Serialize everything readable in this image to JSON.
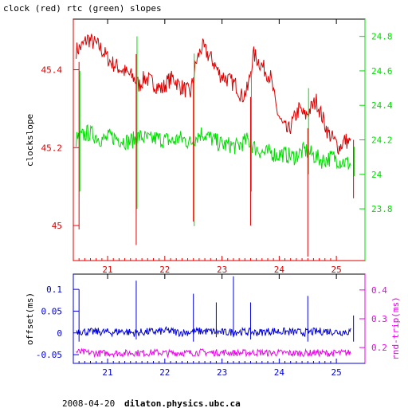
{
  "title": "clock (red) rtc (green) slopes",
  "footer": {
    "date": "2008-04-20",
    "host": "dilaton.physics.ubc.ca"
  },
  "colors": {
    "red": "#dd0000",
    "green": "#00dd00",
    "blue": "#0000dd",
    "magenta": "#ee00ee",
    "axis": "#000000"
  },
  "chart_data": [
    {
      "type": "line",
      "name": "top-panel",
      "ylabel": "clockslope",
      "xlim": [
        20.4,
        25.5
      ],
      "x_ticks": [
        "21",
        "22",
        "23",
        "24",
        "25"
      ],
      "ylim_left": [
        44.91,
        45.53
      ],
      "ylim_right": [
        23.5,
        24.9
      ],
      "left_ticks": [
        "45",
        "45.2",
        "45.4"
      ],
      "right_ticks": [
        "23.8",
        "24",
        "24.2",
        "24.4",
        "24.6",
        "24.8"
      ],
      "series": [
        {
          "axis": "left",
          "color": "red",
          "x": [
            20.45,
            20.55,
            20.65,
            20.75,
            20.85,
            20.95,
            21.05,
            21.15,
            21.25,
            21.35,
            21.45,
            21.55,
            21.65,
            21.75,
            21.85,
            21.95,
            22.05,
            22.15,
            22.25,
            22.35,
            22.45,
            22.55,
            22.65,
            22.75,
            22.85,
            22.95,
            23.05,
            23.15,
            23.25,
            23.35,
            23.45,
            23.55,
            23.65,
            23.75,
            23.85,
            23.95,
            24.05,
            24.15,
            24.25,
            24.35,
            24.45,
            24.55,
            24.65,
            24.75,
            24.85,
            24.95,
            25.05,
            25.15,
            25.25
          ],
          "y": [
            45.45,
            45.46,
            45.48,
            45.47,
            45.46,
            45.44,
            45.42,
            45.41,
            45.4,
            45.39,
            45.38,
            45.36,
            45.38,
            45.37,
            45.36,
            45.35,
            45.37,
            45.38,
            45.36,
            45.35,
            45.34,
            45.42,
            45.46,
            45.44,
            45.42,
            45.39,
            45.38,
            45.37,
            45.36,
            45.33,
            45.35,
            45.44,
            45.42,
            45.4,
            45.38,
            45.3,
            45.26,
            45.24,
            45.27,
            45.3,
            45.28,
            45.3,
            45.32,
            45.28,
            45.24,
            45.22,
            45.2,
            45.22,
            45.21
          ]
        },
        {
          "axis": "right",
          "color": "green",
          "x": [
            20.45,
            20.55,
            20.65,
            20.75,
            20.85,
            20.95,
            21.05,
            21.15,
            21.25,
            21.35,
            21.45,
            21.55,
            21.65,
            21.75,
            21.85,
            21.95,
            22.05,
            22.15,
            22.25,
            22.35,
            22.45,
            22.55,
            22.65,
            22.75,
            22.85,
            22.95,
            23.05,
            23.15,
            23.25,
            23.35,
            23.45,
            23.55,
            23.65,
            23.75,
            23.85,
            23.95,
            24.05,
            24.15,
            24.25,
            24.35,
            24.45,
            24.55,
            24.65,
            24.75,
            24.85,
            24.95,
            25.05,
            25.15,
            25.25
          ],
          "y": [
            24.2,
            24.22,
            24.24,
            24.23,
            24.21,
            24.2,
            24.22,
            24.21,
            24.2,
            24.19,
            24.2,
            24.22,
            24.21,
            24.2,
            24.21,
            24.2,
            24.2,
            24.19,
            24.21,
            24.2,
            24.18,
            24.22,
            24.24,
            24.22,
            24.2,
            24.18,
            24.17,
            24.17,
            24.16,
            24.18,
            24.2,
            24.16,
            24.14,
            24.12,
            24.13,
            24.11,
            24.12,
            24.11,
            24.1,
            24.12,
            24.14,
            24.12,
            24.1,
            24.08,
            24.09,
            24.1,
            24.08,
            24.07,
            24.06
          ]
        }
      ],
      "spikes": [
        {
          "x": 20.5,
          "left_min": 44.99,
          "left_max": 45.42,
          "right_min": 23.9,
          "right_max": 24.6
        },
        {
          "x": 21.5,
          "left_min": 44.95,
          "left_max": 45.44,
          "right_min": 23.8,
          "right_max": 24.8
        },
        {
          "x": 22.5,
          "left_min": 45.01,
          "left_max": 45.38,
          "right_min": 23.7,
          "right_max": 24.7
        },
        {
          "x": 23.5,
          "left_min": 45.0,
          "left_max": 45.33,
          "right_min": 23.9,
          "right_max": 24.6
        },
        {
          "x": 24.5,
          "left_min": 44.92,
          "left_max": 45.25,
          "right_min": 24.0,
          "right_max": 24.5
        },
        {
          "x": 25.3,
          "left_min": 45.07,
          "left_max": 45.22,
          "right_min": 23.99,
          "right_max": 24.16
        }
      ]
    },
    {
      "type": "line",
      "name": "bottom-panel",
      "ylabel_left": "offset(ms)",
      "ylabel_right": "rnd-trip(ms)",
      "xlim": [
        20.4,
        25.5
      ],
      "x_ticks": [
        "21",
        "22",
        "23",
        "24",
        "25"
      ],
      "ylim_left": [
        -0.07,
        0.135
      ],
      "ylim_right": [
        0.145,
        0.455
      ],
      "left_ticks": [
        "-0.05",
        "0",
        "0.05",
        "0.1"
      ],
      "right_ticks": [
        "0.2",
        "0.3",
        "0.4"
      ],
      "series": [
        {
          "axis": "left",
          "color": "blue",
          "x": [
            20.45,
            20.65,
            20.85,
            21.05,
            21.25,
            21.45,
            21.65,
            21.85,
            22.05,
            22.25,
            22.45,
            22.65,
            22.85,
            23.05,
            23.25,
            23.45,
            23.65,
            23.85,
            24.05,
            24.25,
            24.45,
            24.65,
            24.85,
            25.05,
            25.25
          ],
          "y": [
            0.005,
            0.002,
            0.003,
            0.001,
            0.004,
            0.0,
            0.002,
            0.003,
            0.005,
            0.001,
            0.002,
            0.004,
            0.003,
            0.001,
            0.003,
            0.002,
            0.001,
            0.004,
            0.003,
            0.002,
            0.001,
            0.003,
            0.004,
            0.002,
            0.003
          ]
        },
        {
          "axis": "right",
          "color": "magenta",
          "x": [
            20.45,
            20.65,
            20.85,
            21.05,
            21.25,
            21.45,
            21.65,
            21.85,
            22.05,
            22.25,
            22.45,
            22.65,
            22.85,
            23.05,
            23.25,
            23.45,
            23.65,
            23.85,
            24.05,
            24.25,
            24.45,
            24.65,
            24.85,
            25.05,
            25.25
          ],
          "y": [
            0.185,
            0.182,
            0.18,
            0.181,
            0.18,
            0.182,
            0.181,
            0.183,
            0.18,
            0.182,
            0.181,
            0.184,
            0.182,
            0.183,
            0.181,
            0.182,
            0.183,
            0.181,
            0.182,
            0.18,
            0.181,
            0.182,
            0.18,
            0.181,
            0.182
          ]
        }
      ],
      "spikes": [
        {
          "x": 20.5,
          "min": -0.02,
          "max": 0.1
        },
        {
          "x": 21.5,
          "min": -0.015,
          "max": 0.12
        },
        {
          "x": 22.5,
          "min": -0.02,
          "max": 0.09
        },
        {
          "x": 22.9,
          "min": -0.01,
          "max": 0.07
        },
        {
          "x": 23.2,
          "min": -0.01,
          "max": 0.13
        },
        {
          "x": 23.5,
          "min": -0.015,
          "max": 0.07
        },
        {
          "x": 24.5,
          "min": -0.02,
          "max": 0.085
        },
        {
          "x": 25.3,
          "min": -0.02,
          "max": 0.04
        }
      ]
    }
  ]
}
